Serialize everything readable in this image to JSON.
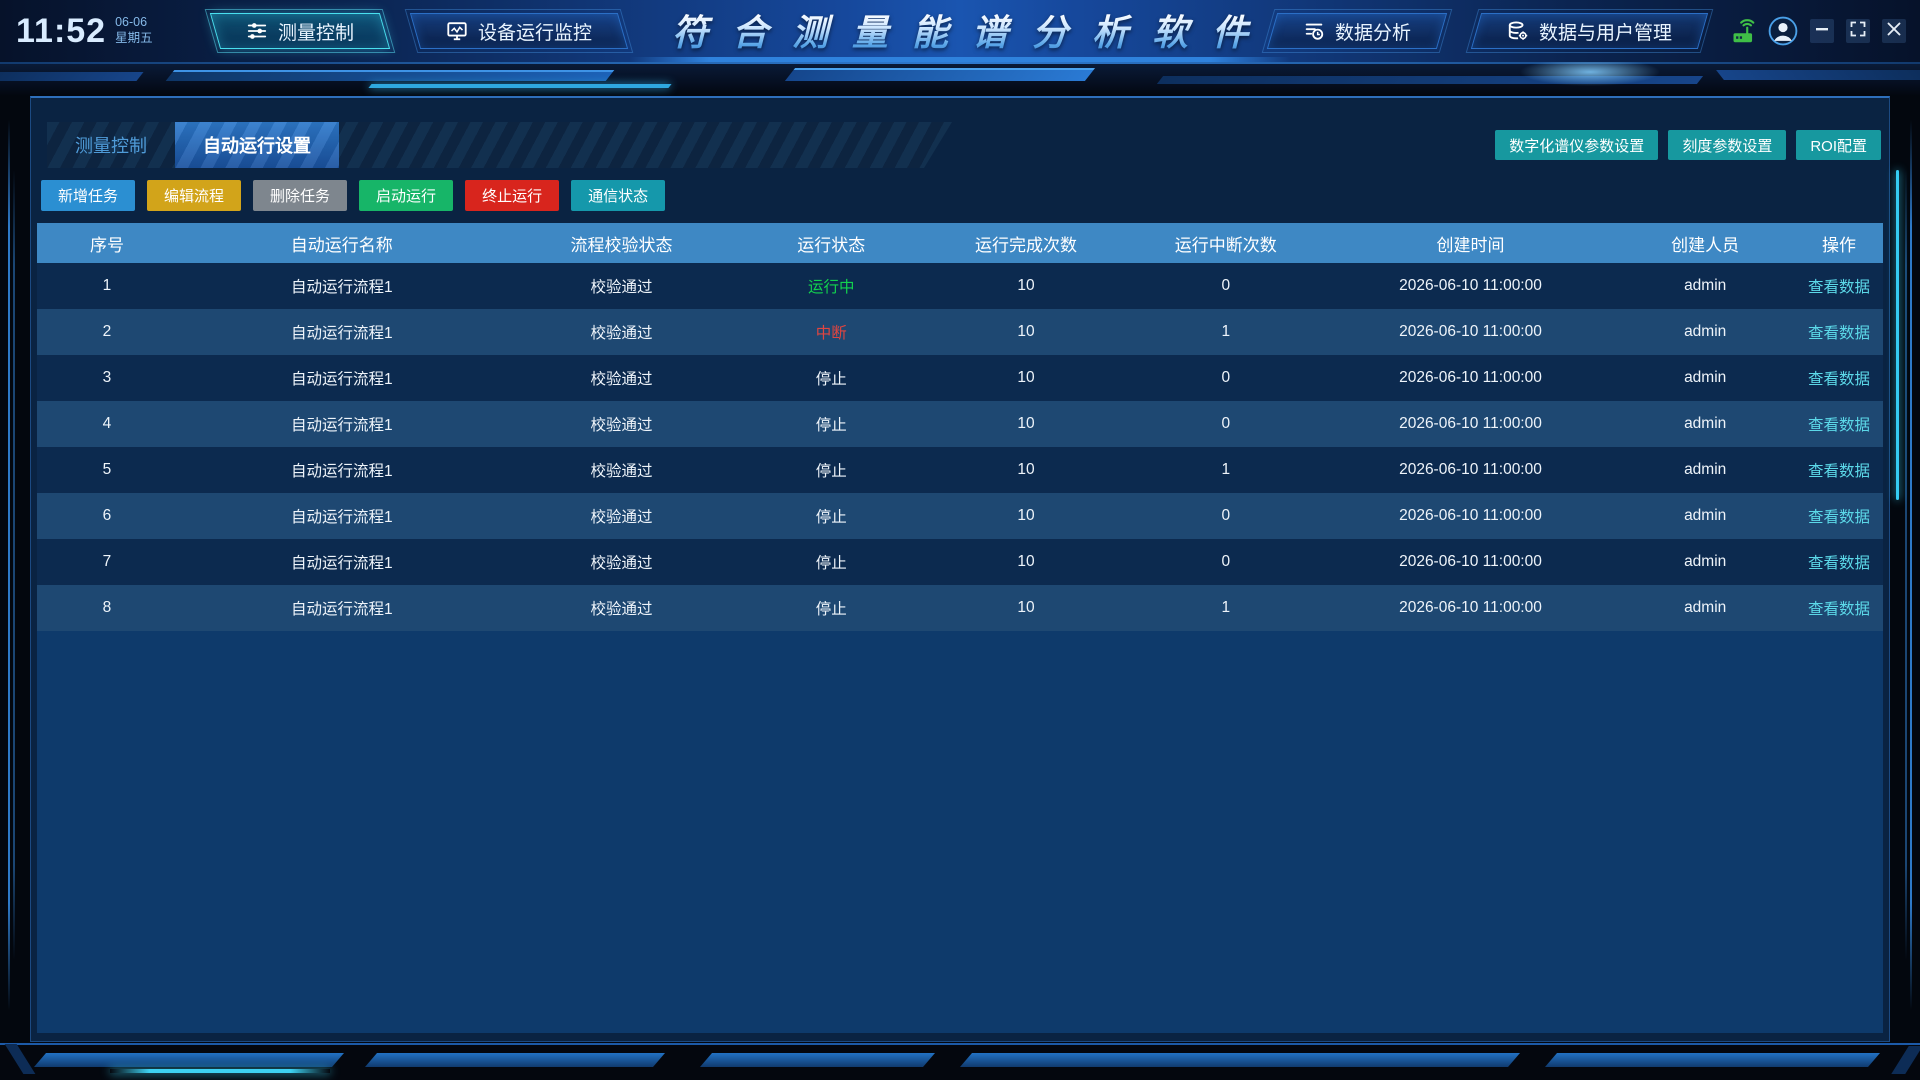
{
  "header": {
    "time": "11:52",
    "date": "06-06",
    "weekday": "星期五",
    "title": "符合测量能谱分析软件",
    "nav_left": [
      {
        "id": "measure-control",
        "label": "测量控制",
        "icon": "sliders-icon",
        "active": true
      },
      {
        "id": "device-monitor",
        "label": "设备运行监控",
        "icon": "monitor-icon",
        "active": false
      }
    ],
    "nav_right": [
      {
        "id": "data-analysis",
        "label": "数据分析",
        "icon": "report-icon",
        "active": false
      },
      {
        "id": "data-user-mgmt",
        "label": "数据与用户管理",
        "icon": "database-gear-icon",
        "active": false
      }
    ],
    "status_icons": [
      {
        "id": "device-online",
        "icon": "device-online-icon",
        "color": "#3fbf47"
      },
      {
        "id": "user-avatar",
        "icon": "avatar-icon",
        "color": "#4aa0e8"
      }
    ],
    "window_controls": [
      {
        "id": "minimize",
        "icon": "minimize-icon"
      },
      {
        "id": "maximize",
        "icon": "maximize-icon"
      },
      {
        "id": "close",
        "icon": "close-icon"
      }
    ]
  },
  "subtabs": [
    {
      "id": "measure-control",
      "label": "测量控制",
      "active": false
    },
    {
      "id": "auto-run-settings",
      "label": "自动运行设置",
      "active": true
    }
  ],
  "settings_buttons": [
    {
      "id": "digitizer-params",
      "label": "数字化谱仪参数设置"
    },
    {
      "id": "calibration-params",
      "label": "刻度参数设置"
    },
    {
      "id": "roi-config",
      "label": "ROI配置"
    }
  ],
  "action_buttons": [
    {
      "id": "add-task",
      "label": "新增任务",
      "color": "#2b8fd2"
    },
    {
      "id": "edit-flow",
      "label": "编辑流程",
      "color": "#d2a41a"
    },
    {
      "id": "delete-task",
      "label": "删除任务",
      "color": "#7e868e"
    },
    {
      "id": "start-run",
      "label": "启动运行",
      "color": "#17b568"
    },
    {
      "id": "stop-run",
      "label": "终止运行",
      "color": "#d8251d"
    },
    {
      "id": "comm-status",
      "label": "通信状态",
      "color": "#1598ab"
    }
  ],
  "table": {
    "columns": [
      "序号",
      "自动运行名称",
      "流程校验状态",
      "运行状态",
      "运行完成次数",
      "运行中断次数",
      "创建时间",
      "创建人员",
      "操作"
    ],
    "view_link_label": "查看数据",
    "status_colors": {
      "running": "#12d24e",
      "interrupted": "#e04540",
      "stopped": "#eef4fa"
    },
    "rows": [
      {
        "seq": "1",
        "name": "自动运行流程1",
        "check": "校验通过",
        "status": "运行中",
        "status_key": "running",
        "completed": "10",
        "interrupted": "0",
        "created": "2026-06-10 11:00:00",
        "creator": "admin"
      },
      {
        "seq": "2",
        "name": "自动运行流程1",
        "check": "校验通过",
        "status": "中断",
        "status_key": "interrupted",
        "completed": "10",
        "interrupted": "1",
        "created": "2026-06-10 11:00:00",
        "creator": "admin"
      },
      {
        "seq": "3",
        "name": "自动运行流程1",
        "check": "校验通过",
        "status": "停止",
        "status_key": "stopped",
        "completed": "10",
        "interrupted": "0",
        "created": "2026-06-10 11:00:00",
        "creator": "admin"
      },
      {
        "seq": "4",
        "name": "自动运行流程1",
        "check": "校验通过",
        "status": "停止",
        "status_key": "stopped",
        "completed": "10",
        "interrupted": "0",
        "created": "2026-06-10 11:00:00",
        "creator": "admin"
      },
      {
        "seq": "5",
        "name": "自动运行流程1",
        "check": "校验通过",
        "status": "停止",
        "status_key": "stopped",
        "completed": "10",
        "interrupted": "1",
        "created": "2026-06-10 11:00:00",
        "creator": "admin"
      },
      {
        "seq": "6",
        "name": "自动运行流程1",
        "check": "校验通过",
        "status": "停止",
        "status_key": "stopped",
        "completed": "10",
        "interrupted": "0",
        "created": "2026-06-10 11:00:00",
        "creator": "admin"
      },
      {
        "seq": "7",
        "name": "自动运行流程1",
        "check": "校验通过",
        "status": "停止",
        "status_key": "stopped",
        "completed": "10",
        "interrupted": "0",
        "created": "2026-06-10 11:00:00",
        "creator": "admin"
      },
      {
        "seq": "8",
        "name": "自动运行流程1",
        "check": "校验通过",
        "status": "停止",
        "status_key": "stopped",
        "completed": "10",
        "interrupted": "1",
        "created": "2026-06-10 11:00:00",
        "creator": "admin"
      }
    ]
  }
}
